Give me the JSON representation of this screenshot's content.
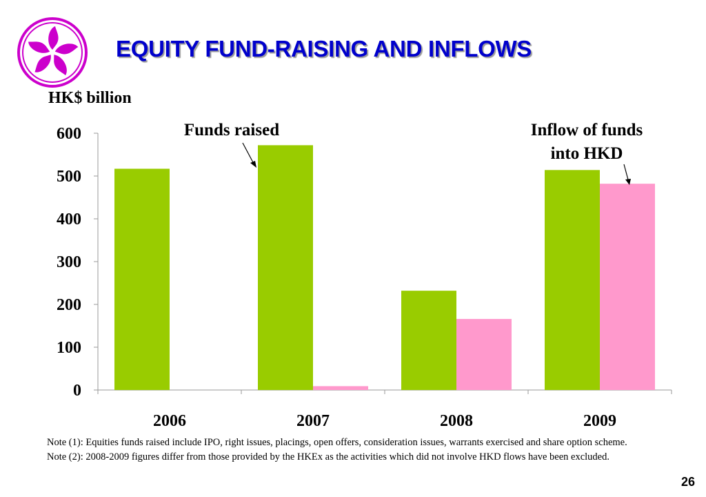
{
  "slide": {
    "title": "EQUITY FUND-RAISING AND INFLOWS",
    "unit_label": "HK$ billion",
    "page_number": "26"
  },
  "annotations": {
    "funds_raised": "Funds raised",
    "inflow_line1": "Inflow of funds",
    "inflow_line2": "into HKD"
  },
  "notes": {
    "note1": "Note (1): Equities funds raised include IPO, right issues, placings, open offers, consideration issues, warrants exercised and share option scheme.",
    "note2": "Note (2): 2008-2009 figures differ from those provided by the HKEx as the activities which did not involve HKD flows have been excluded."
  },
  "colors": {
    "title": "#0000cc",
    "funds_raised": "#99cc00",
    "inflow": "#ff99cc",
    "logo": "#cc00cc"
  },
  "chart_data": {
    "type": "bar",
    "categories": [
      "2006",
      "2007",
      "2008",
      "2009"
    ],
    "series": [
      {
        "name": "Funds raised",
        "values": [
          517,
          572,
          232,
          514
        ]
      },
      {
        "name": "Inflow of funds into HKD",
        "values": [
          0,
          9,
          166,
          482
        ]
      }
    ],
    "yticks": [
      0,
      100,
      200,
      300,
      400,
      500,
      600
    ],
    "ylim": [
      0,
      600
    ],
    "ylabel": "HK$ billion",
    "grid": false
  }
}
